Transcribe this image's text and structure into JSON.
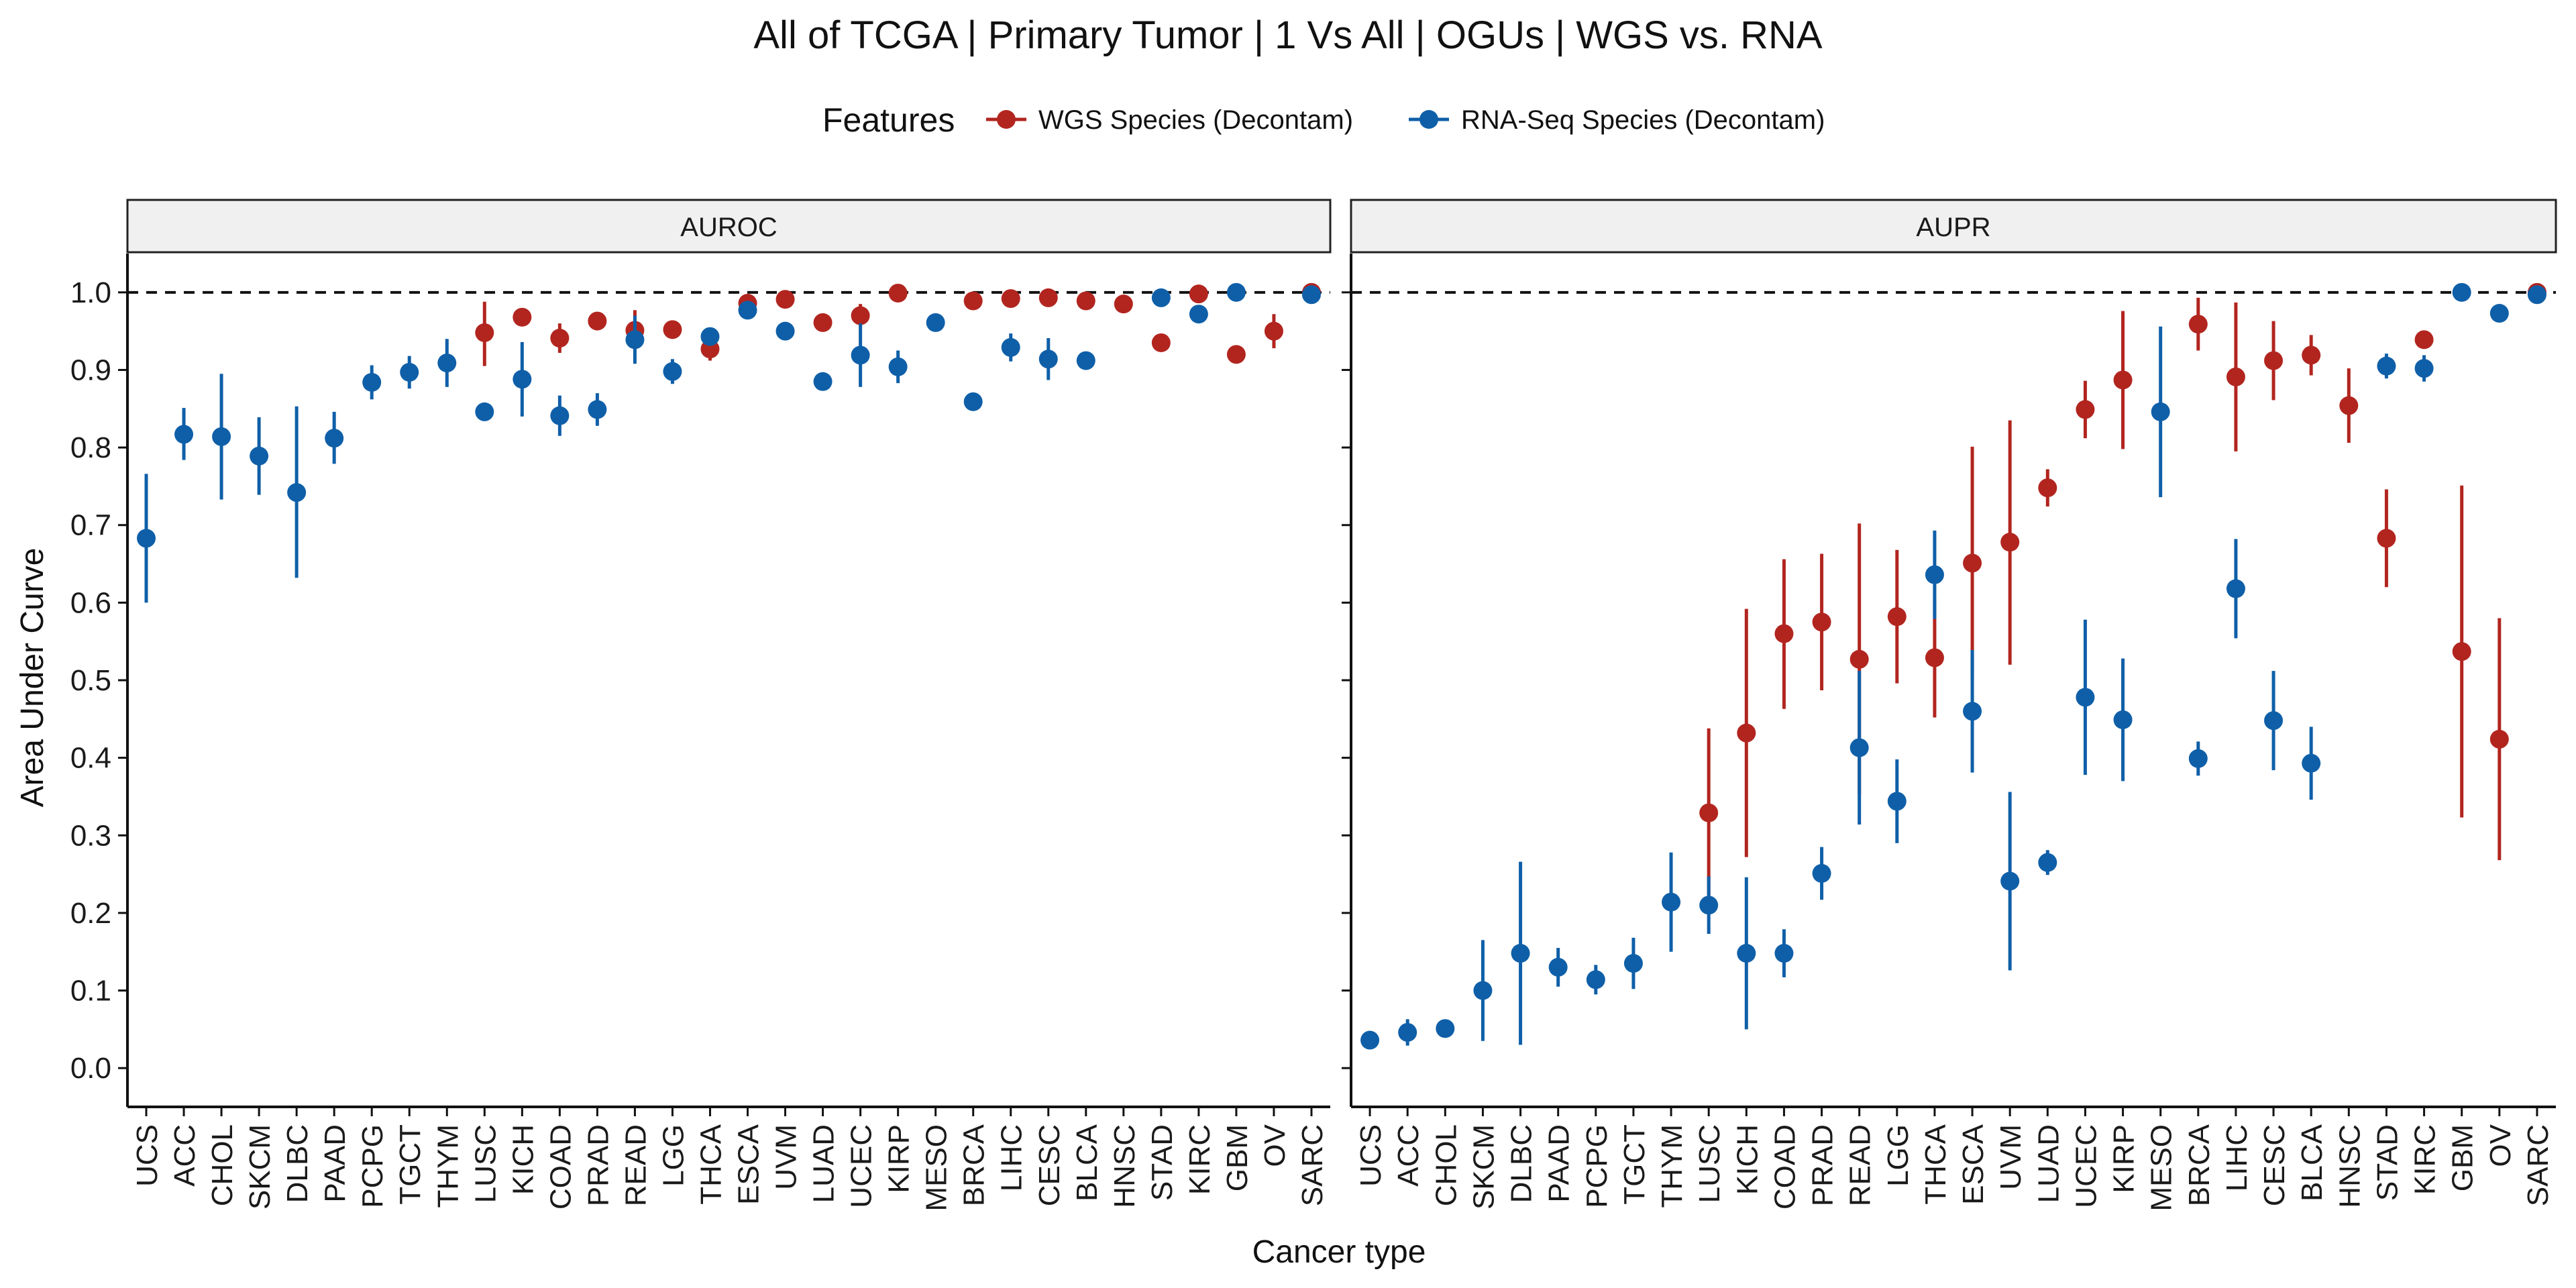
{
  "chart_data": {
    "type": "scatter",
    "title": "All of TCGA | Primary Tumor | 1 Vs All | OGUs | WGS vs. RNA",
    "xlabel": "Cancer type",
    "ylabel": "Area Under Curve",
    "ylim": [
      -0.05,
      1.05
    ],
    "yticks": [
      "0.0",
      "0.1",
      "0.2",
      "0.3",
      "0.4",
      "0.5",
      "0.6",
      "0.7",
      "0.8",
      "0.9",
      "1.0"
    ],
    "reference_line": 1.0,
    "legend": {
      "title": "Features",
      "position": "top",
      "entries": [
        {
          "label": "WGS Species (Decontam)",
          "color": "#B2251F"
        },
        {
          "label": "RNA-Seq Species (Decontam)",
          "color": "#0F5FA8"
        }
      ]
    },
    "panels": [
      {
        "label": "AUROC",
        "categories": [
          "UCS",
          "ACC",
          "CHOL",
          "SKCM",
          "DLBC",
          "PAAD",
          "PCPG",
          "TGCT",
          "THYM",
          "LUSC",
          "KICH",
          "COAD",
          "PRAD",
          "READ",
          "LGG",
          "THCA",
          "ESCA",
          "UVM",
          "LUAD",
          "UCEC",
          "KIRP",
          "MESO",
          "BRCA",
          "LIHC",
          "CESC",
          "BLCA",
          "HNSC",
          "STAD",
          "KIRC",
          "GBM",
          "OV",
          "SARC"
        ],
        "series": [
          {
            "name": "WGS Species (Decontam)",
            "color": "#B2251F",
            "points": [
              {
                "cat": "LUSC",
                "y": 0.948,
                "lo": 0.905,
                "hi": 0.988
              },
              {
                "cat": "KICH",
                "y": 0.968
              },
              {
                "cat": "COAD",
                "y": 0.941,
                "lo": 0.922,
                "hi": 0.96
              },
              {
                "cat": "PRAD",
                "y": 0.963
              },
              {
                "cat": "READ",
                "y": 0.951,
                "lo": 0.925,
                "hi": 0.977
              },
              {
                "cat": "LGG",
                "y": 0.952
              },
              {
                "cat": "THCA",
                "y": 0.927,
                "lo": 0.912,
                "hi": 0.942
              },
              {
                "cat": "ESCA",
                "y": 0.986
              },
              {
                "cat": "UVM",
                "y": 0.991
              },
              {
                "cat": "LUAD",
                "y": 0.961
              },
              {
                "cat": "UCEC",
                "y": 0.97,
                "lo": 0.955,
                "hi": 0.985
              },
              {
                "cat": "KIRP",
                "y": 0.999
              },
              {
                "cat": "BRCA",
                "y": 0.989
              },
              {
                "cat": "LIHC",
                "y": 0.992
              },
              {
                "cat": "CESC",
                "y": 0.993
              },
              {
                "cat": "BLCA",
                "y": 0.989
              },
              {
                "cat": "HNSC",
                "y": 0.985
              },
              {
                "cat": "STAD",
                "y": 0.935
              },
              {
                "cat": "KIRC",
                "y": 0.998
              },
              {
                "cat": "GBM",
                "y": 0.92
              },
              {
                "cat": "OV",
                "y": 0.95,
                "lo": 0.928,
                "hi": 0.972
              },
              {
                "cat": "SARC",
                "y": 1.0
              }
            ]
          },
          {
            "name": "RNA-Seq Species (Decontam)",
            "color": "#0F5FA8",
            "points": [
              {
                "cat": "UCS",
                "y": 0.683,
                "lo": 0.6,
                "hi": 0.766
              },
              {
                "cat": "ACC",
                "y": 0.817,
                "lo": 0.784,
                "hi": 0.851
              },
              {
                "cat": "CHOL",
                "y": 0.814,
                "lo": 0.733,
                "hi": 0.895
              },
              {
                "cat": "SKCM",
                "y": 0.789,
                "lo": 0.739,
                "hi": 0.839
              },
              {
                "cat": "DLBC",
                "y": 0.742,
                "lo": 0.632,
                "hi": 0.853
              },
              {
                "cat": "PAAD",
                "y": 0.812,
                "lo": 0.779,
                "hi": 0.846
              },
              {
                "cat": "PCPG",
                "y": 0.884,
                "lo": 0.862,
                "hi": 0.906
              },
              {
                "cat": "TGCT",
                "y": 0.897,
                "lo": 0.876,
                "hi": 0.918
              },
              {
                "cat": "THYM",
                "y": 0.909,
                "lo": 0.878,
                "hi": 0.94
              },
              {
                "cat": "LUSC",
                "y": 0.846
              },
              {
                "cat": "KICH",
                "y": 0.888,
                "lo": 0.84,
                "hi": 0.936
              },
              {
                "cat": "COAD",
                "y": 0.841,
                "lo": 0.815,
                "hi": 0.867
              },
              {
                "cat": "PRAD",
                "y": 0.849,
                "lo": 0.828,
                "hi": 0.87
              },
              {
                "cat": "READ",
                "y": 0.939,
                "lo": 0.908,
                "hi": 0.97
              },
              {
                "cat": "LGG",
                "y": 0.898,
                "lo": 0.882,
                "hi": 0.914
              },
              {
                "cat": "THCA",
                "y": 0.943
              },
              {
                "cat": "ESCA",
                "y": 0.977
              },
              {
                "cat": "UVM",
                "y": 0.95
              },
              {
                "cat": "LUAD",
                "y": 0.885
              },
              {
                "cat": "UCEC",
                "y": 0.919,
                "lo": 0.878,
                "hi": 0.96
              },
              {
                "cat": "KIRP",
                "y": 0.904,
                "lo": 0.883,
                "hi": 0.925
              },
              {
                "cat": "MESO",
                "y": 0.961
              },
              {
                "cat": "BRCA",
                "y": 0.859
              },
              {
                "cat": "LIHC",
                "y": 0.929,
                "lo": 0.911,
                "hi": 0.947
              },
              {
                "cat": "CESC",
                "y": 0.914,
                "lo": 0.887,
                "hi": 0.941
              },
              {
                "cat": "BLCA",
                "y": 0.912
              },
              {
                "cat": "STAD",
                "y": 0.993
              },
              {
                "cat": "KIRC",
                "y": 0.972
              },
              {
                "cat": "GBM",
                "y": 1.0
              },
              {
                "cat": "SARC",
                "y": 0.997
              }
            ]
          }
        ]
      },
      {
        "label": "AUPR",
        "categories": [
          "UCS",
          "ACC",
          "CHOL",
          "SKCM",
          "DLBC",
          "PAAD",
          "PCPG",
          "TGCT",
          "THYM",
          "LUSC",
          "KICH",
          "COAD",
          "PRAD",
          "READ",
          "LGG",
          "THCA",
          "ESCA",
          "UVM",
          "LUAD",
          "UCEC",
          "KIRP",
          "MESO",
          "BRCA",
          "LIHC",
          "CESC",
          "BLCA",
          "HNSC",
          "STAD",
          "KIRC",
          "GBM",
          "OV",
          "SARC"
        ],
        "series": [
          {
            "name": "WGS Species (Decontam)",
            "color": "#B2251F",
            "points": [
              {
                "cat": "LUSC",
                "y": 0.329,
                "lo": 0.22,
                "hi": 0.438
              },
              {
                "cat": "KICH",
                "y": 0.432,
                "lo": 0.272,
                "hi": 0.592
              },
              {
                "cat": "COAD",
                "y": 0.56,
                "lo": 0.463,
                "hi": 0.656
              },
              {
                "cat": "PRAD",
                "y": 0.575,
                "lo": 0.487,
                "hi": 0.663
              },
              {
                "cat": "READ",
                "y": 0.527,
                "lo": 0.352,
                "hi": 0.702
              },
              {
                "cat": "LGG",
                "y": 0.582,
                "lo": 0.496,
                "hi": 0.668
              },
              {
                "cat": "THCA",
                "y": 0.529,
                "lo": 0.452,
                "hi": 0.606
              },
              {
                "cat": "ESCA",
                "y": 0.651,
                "lo": 0.501,
                "hi": 0.801
              },
              {
                "cat": "UVM",
                "y": 0.678,
                "lo": 0.52,
                "hi": 0.835
              },
              {
                "cat": "LUAD",
                "y": 0.748,
                "lo": 0.724,
                "hi": 0.772
              },
              {
                "cat": "UCEC",
                "y": 0.849,
                "lo": 0.812,
                "hi": 0.886
              },
              {
                "cat": "KIRP",
                "y": 0.887,
                "lo": 0.798,
                "hi": 0.976
              },
              {
                "cat": "BRCA",
                "y": 0.959,
                "lo": 0.925,
                "hi": 0.993
              },
              {
                "cat": "LIHC",
                "y": 0.891,
                "lo": 0.795,
                "hi": 0.987
              },
              {
                "cat": "CESC",
                "y": 0.912,
                "lo": 0.861,
                "hi": 0.963
              },
              {
                "cat": "BLCA",
                "y": 0.919,
                "lo": 0.893,
                "hi": 0.945
              },
              {
                "cat": "HNSC",
                "y": 0.854,
                "lo": 0.806,
                "hi": 0.902
              },
              {
                "cat": "STAD",
                "y": 0.683,
                "lo": 0.62,
                "hi": 0.746
              },
              {
                "cat": "KIRC",
                "y": 0.939
              },
              {
                "cat": "GBM",
                "y": 0.537,
                "lo": 0.323,
                "hi": 0.751
              },
              {
                "cat": "OV",
                "y": 0.424,
                "lo": 0.268,
                "hi": 0.58
              },
              {
                "cat": "SARC",
                "y": 1.0
              }
            ]
          },
          {
            "name": "RNA-Seq Species (Decontam)",
            "color": "#0F5FA8",
            "points": [
              {
                "cat": "UCS",
                "y": 0.036
              },
              {
                "cat": "ACC",
                "y": 0.046,
                "lo": 0.029,
                "hi": 0.063
              },
              {
                "cat": "CHOL",
                "y": 0.051
              },
              {
                "cat": "SKCM",
                "y": 0.1,
                "lo": 0.035,
                "hi": 0.165
              },
              {
                "cat": "DLBC",
                "y": 0.148,
                "lo": 0.03,
                "hi": 0.266
              },
              {
                "cat": "PAAD",
                "y": 0.13,
                "lo": 0.105,
                "hi": 0.155
              },
              {
                "cat": "PCPG",
                "y": 0.114,
                "lo": 0.095,
                "hi": 0.133
              },
              {
                "cat": "TGCT",
                "y": 0.135,
                "lo": 0.102,
                "hi": 0.168
              },
              {
                "cat": "THYM",
                "y": 0.214,
                "lo": 0.15,
                "hi": 0.278
              },
              {
                "cat": "LUSC",
                "y": 0.21,
                "lo": 0.173,
                "hi": 0.247
              },
              {
                "cat": "KICH",
                "y": 0.148,
                "lo": 0.05,
                "hi": 0.246
              },
              {
                "cat": "COAD",
                "y": 0.148,
                "lo": 0.117,
                "hi": 0.179
              },
              {
                "cat": "PRAD",
                "y": 0.251,
                "lo": 0.217,
                "hi": 0.285
              },
              {
                "cat": "READ",
                "y": 0.413,
                "lo": 0.314,
                "hi": 0.512
              },
              {
                "cat": "LGG",
                "y": 0.344,
                "lo": 0.29,
                "hi": 0.398
              },
              {
                "cat": "THCA",
                "y": 0.636,
                "lo": 0.579,
                "hi": 0.693
              },
              {
                "cat": "ESCA",
                "y": 0.46,
                "lo": 0.381,
                "hi": 0.539
              },
              {
                "cat": "UVM",
                "y": 0.241,
                "lo": 0.126,
                "hi": 0.356
              },
              {
                "cat": "LUAD",
                "y": 0.265,
                "lo": 0.249,
                "hi": 0.281
              },
              {
                "cat": "UCEC",
                "y": 0.478,
                "lo": 0.378,
                "hi": 0.578
              },
              {
                "cat": "KIRP",
                "y": 0.449,
                "lo": 0.37,
                "hi": 0.528
              },
              {
                "cat": "MESO",
                "y": 0.846,
                "lo": 0.736,
                "hi": 0.956
              },
              {
                "cat": "BRCA",
                "y": 0.399,
                "lo": 0.377,
                "hi": 0.421
              },
              {
                "cat": "LIHC",
                "y": 0.618,
                "lo": 0.554,
                "hi": 0.682
              },
              {
                "cat": "CESC",
                "y": 0.448,
                "lo": 0.384,
                "hi": 0.512
              },
              {
                "cat": "BLCA",
                "y": 0.393,
                "lo": 0.346,
                "hi": 0.44
              },
              {
                "cat": "STAD",
                "y": 0.905,
                "lo": 0.889,
                "hi": 0.921
              },
              {
                "cat": "KIRC",
                "y": 0.902,
                "lo": 0.885,
                "hi": 0.919
              },
              {
                "cat": "GBM",
                "y": 1.0
              },
              {
                "cat": "OV",
                "y": 0.973
              },
              {
                "cat": "SARC",
                "y": 0.997
              }
            ]
          }
        ]
      }
    ]
  }
}
